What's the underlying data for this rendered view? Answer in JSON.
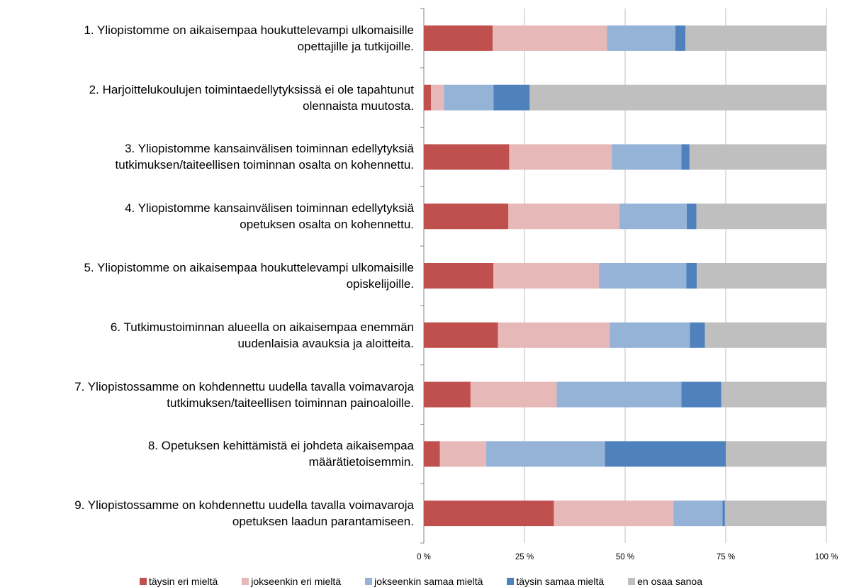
{
  "chart_data": {
    "type": "bar",
    "orientation": "horizontal",
    "stacked": true,
    "categories": [
      [
        "1. Yliopistomme on aikaisempaa houkuttelevampi ulkomaisille",
        "opettajille ja tutkijoille."
      ],
      [
        "2. Harjoittelukoulujen toimintaedellytyksissä ei ole tapahtunut",
        "olennaista muutosta."
      ],
      [
        "3. Yliopistomme kansainvälisen toiminnan edellytyksiä",
        "tutkimuksen/taiteellisen toiminnan osalta on kohennettu."
      ],
      [
        "4. Yliopistomme kansainvälisen toiminnan edellytyksiä",
        "opetuksen osalta on kohennettu."
      ],
      [
        "5. Yliopistomme on aikaisempaa houkuttelevampi ulkomaisille",
        "opiskelijoille."
      ],
      [
        "6. Tutkimustoiminnan alueella on aikaisempaa enemmän",
        "uudenlaisia avauksia ja aloitteita."
      ],
      [
        "7. Yliopistossamme on kohdennettu uudella tavalla voimavaroja",
        "tutkimuksen/taiteellisen toiminnan painoaloille."
      ],
      [
        "8. Opetuksen kehittämistä ei johdeta aikaisempaa",
        "määrätietoisemmin."
      ],
      [
        "9. Yliopistossamme on kohdennettu uudella tavalla voimavaroja",
        "opetuksen laadun parantamiseen."
      ]
    ],
    "series": [
      {
        "name": "täysin eri mieltä",
        "color": "#c0504d",
        "values": [
          17.1,
          1.8,
          21.2,
          21.0,
          17.3,
          18.4,
          11.6,
          4.0,
          32.3
        ]
      },
      {
        "name": "jokseenkin eri mieltä",
        "color": "#e6b9b8",
        "values": [
          28.4,
          3.2,
          25.5,
          27.6,
          26.2,
          27.8,
          21.4,
          11.5,
          29.7
        ]
      },
      {
        "name": "jokseenkin samaa mieltä",
        "color": "#95b3d7",
        "values": [
          17.0,
          12.3,
          17.3,
          16.7,
          21.7,
          19.9,
          31.0,
          29.5,
          12.2
        ]
      },
      {
        "name": "täysin samaa mieltä",
        "color": "#4f81bd",
        "values": [
          2.5,
          9.0,
          2.0,
          2.4,
          2.6,
          3.7,
          9.9,
          30.0,
          0.6
        ]
      },
      {
        "name": "en osaa sanoa",
        "color": "#bfbfbf",
        "values": [
          35.0,
          73.7,
          34.0,
          32.3,
          32.2,
          30.2,
          26.1,
          25.0,
          25.2
        ]
      }
    ],
    "xlim": [
      0,
      100
    ],
    "x_ticks": [
      "0 %",
      "25 %",
      "50 %",
      "75 %",
      "100 %"
    ],
    "grid": true,
    "legend_position": "bottom"
  }
}
